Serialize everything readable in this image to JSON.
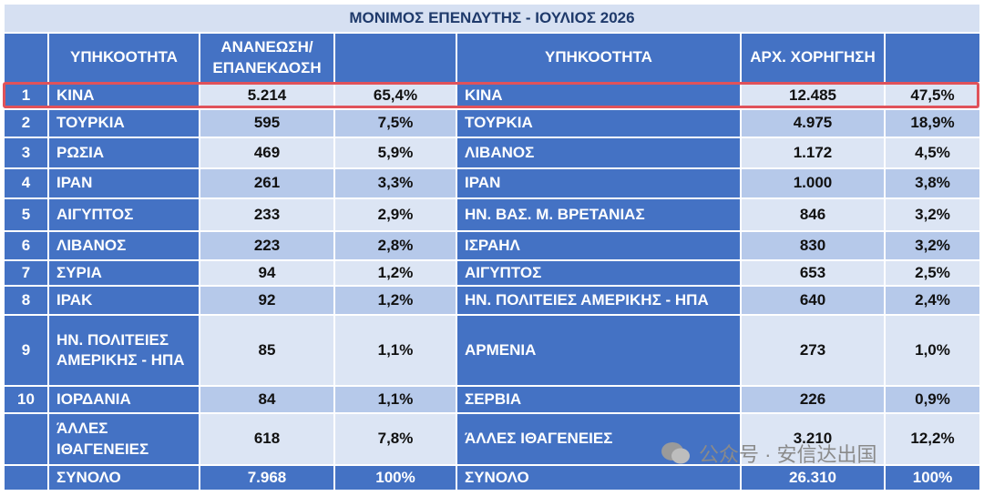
{
  "title": "ΜΟΝΙΜΟΣ ΕΠΕΝΔΥΤΗΣ - ΙΟΥΛΙΟΣ 2026",
  "table": {
    "header": {
      "country_1": "ΥΠΗΚΟΟΤΗΤΑ",
      "renewal": "ΑΝΑΝΕΩΣΗ/ ΕΠΑΝΕΚΔΟΣΗ",
      "country_2": "ΥΠΗΚΟΟΤΗΤΑ",
      "initial": "ΑΡΧ. ΧΟΡΗΓΗΣΗ"
    },
    "rows": [
      [
        "1",
        "ΚΙΝΑ",
        "5.214",
        "65,4%",
        "ΚΙΝΑ",
        "12.485",
        "47,5%"
      ],
      [
        "2",
        "ΤΟΥΡΚΙΑ",
        "595",
        "7,5%",
        "ΤΟΥΡΚΙΑ",
        "4.975",
        "18,9%"
      ],
      [
        "3",
        "ΡΩΣΙΑ",
        "469",
        "5,9%",
        "ΛΙΒΑΝΟΣ",
        "1.172",
        "4,5%"
      ],
      [
        "4",
        "ΙΡΑΝ",
        "261",
        "3,3%",
        "ΙΡΑΝ",
        "1.000",
        "3,8%"
      ],
      [
        "5",
        "ΑΙΓΥΠΤΟΣ",
        "233",
        "2,9%",
        "ΗΝ. ΒΑΣ. Μ. ΒΡΕΤΑΝΙΑΣ",
        "846",
        "3,2%"
      ],
      [
        "6",
        "ΛΙΒΑΝΟΣ",
        "223",
        "2,8%",
        "ΙΣΡΑΗΛ",
        "830",
        "3,2%"
      ],
      [
        "7",
        "ΣΥΡΙΑ",
        "94",
        "1,2%",
        "ΑΙΓΥΠΤΟΣ",
        "653",
        "2,5%"
      ],
      [
        "8",
        "ΙΡΑΚ",
        "92",
        "1,2%",
        "ΗΝ. ΠΟΛΙΤΕΙΕΣ ΑΜΕΡΙΚΗΣ - ΗΠΑ",
        "640",
        "2,4%"
      ],
      [
        "9",
        "ΗΝ. ΠΟΛΙΤΕΙΕΣ ΑΜΕΡΙΚΗΣ - ΗΠΑ",
        "85",
        "1,1%",
        "ΑΡΜΕΝΙΑ",
        "273",
        "1,0%"
      ],
      [
        "10",
        "ΙΟΡΔΑΝΙΑ",
        "84",
        "1,1%",
        "ΣΕΡΒΙΑ",
        "226",
        "0,9%"
      ],
      [
        "",
        "ΆΛΛΕΣ ΙΘΑΓΕΝΕΙΕΣ",
        "618",
        "7,8%",
        "ΆΛΛΕΣ ΙΘΑΓΕΝΕΙΕΣ",
        "3.210",
        "12,2%"
      ]
    ],
    "total": [
      "ΣΥΝΟΛΟ",
      "7.968",
      "100%",
      "ΣΥΝΟΛΟ",
      "26.310",
      "100%"
    ]
  },
  "watermark": "公众号 · 安信达出国"
}
